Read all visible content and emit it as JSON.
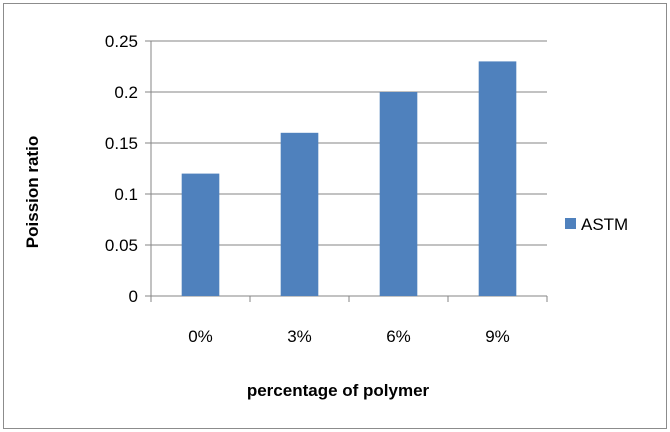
{
  "chart_data": {
    "type": "bar",
    "categories": [
      "0%",
      "3%",
      "6%",
      "9%"
    ],
    "series": [
      {
        "name": "ASTM",
        "values": [
          0.12,
          0.16,
          0.2,
          0.23
        ],
        "color": "#4f81bd"
      }
    ],
    "xlabel": "percentage of polymer",
    "ylabel": "Poission ratio",
    "ylim": [
      0,
      0.25
    ],
    "yticks": [
      "0",
      "0.05",
      "0.1",
      "0.15",
      "0.2",
      "0.25"
    ],
    "grid": "horizontal",
    "legend_position": "right"
  }
}
